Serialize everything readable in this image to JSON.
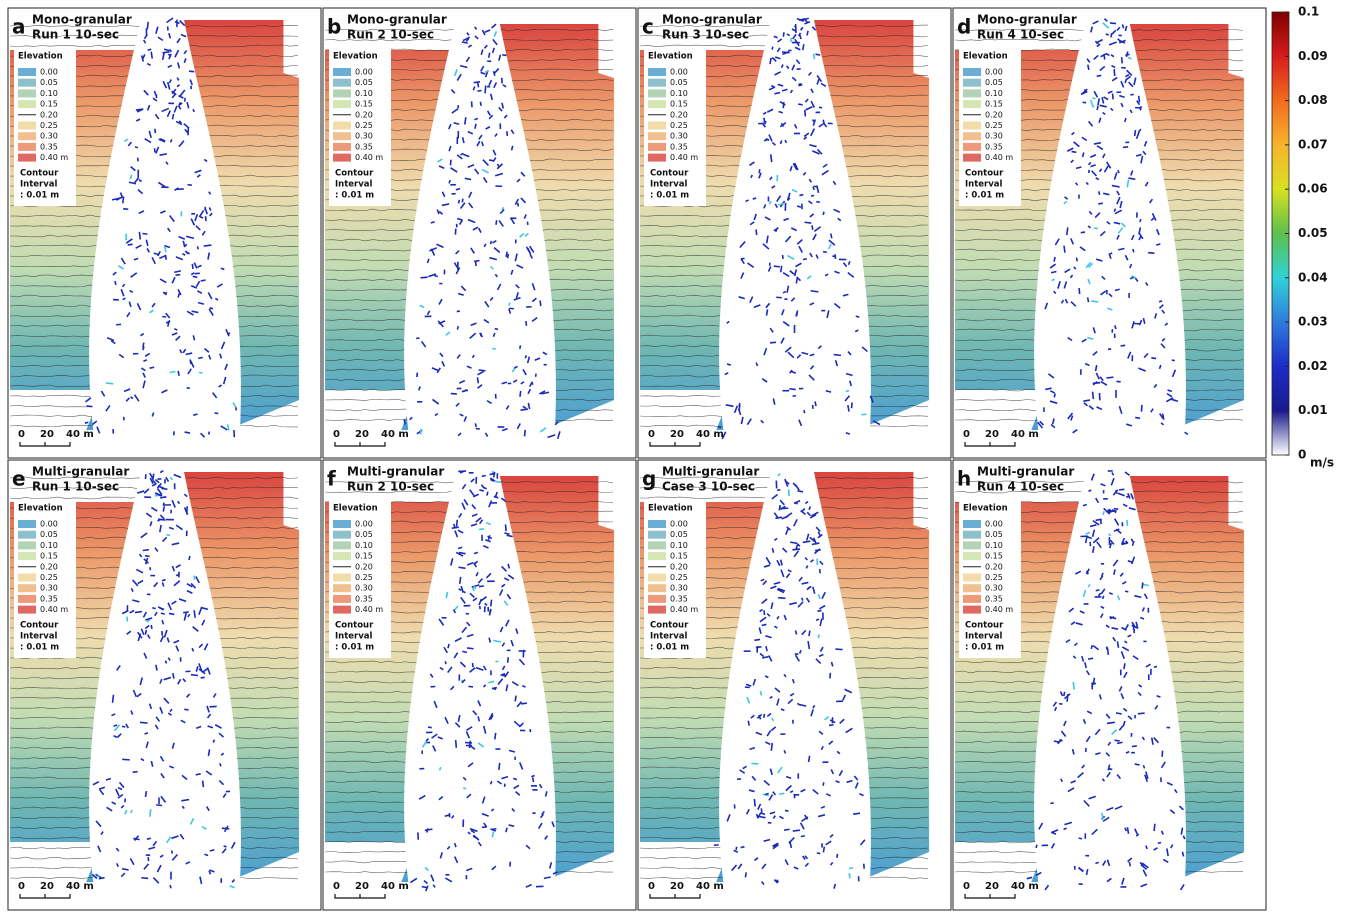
{
  "panels": [
    {
      "letter": "a",
      "line1": "Mono-granular",
      "line2": "Run 1 10-sec"
    },
    {
      "letter": "b",
      "line1": "Mono-granular",
      "line2": "Run 2 10-sec"
    },
    {
      "letter": "c",
      "line1": "Mono-granular",
      "line2": "Run 3 10-sec"
    },
    {
      "letter": "d",
      "line1": "Mono-granular",
      "line2": "Run 4 10-sec"
    },
    {
      "letter": "e",
      "line1": "Multi-granular",
      "line2": "Run 1 10-sec"
    },
    {
      "letter": "f",
      "line1": "Multi-granular",
      "line2": "Run 2 10-sec"
    },
    {
      "letter": "g",
      "line1": "Multi-granular",
      "line2": "Case 3 10-sec"
    },
    {
      "letter": "h",
      "line1": "Multi-granular",
      "line2": "Run 4 10-sec"
    }
  ],
  "legend": {
    "title": "Elevation",
    "entries": [
      "0.00",
      "0.05",
      "0.10",
      "0.15",
      "0.20",
      "0.25",
      "0.30",
      "0.35",
      "0.40 m"
    ],
    "contour": [
      "Contour",
      "Interval",
      ": 0.01 m"
    ]
  },
  "scale_bar": {
    "labels": [
      "0",
      "20",
      "40 m"
    ]
  },
  "colorbar": {
    "ticks": [
      "0.1",
      "0.09",
      "0.08",
      "0.07",
      "0.06",
      "0.05",
      "0.04",
      "0.03",
      "0.02",
      "0.01",
      "0"
    ],
    "unit": "m/s"
  }
}
